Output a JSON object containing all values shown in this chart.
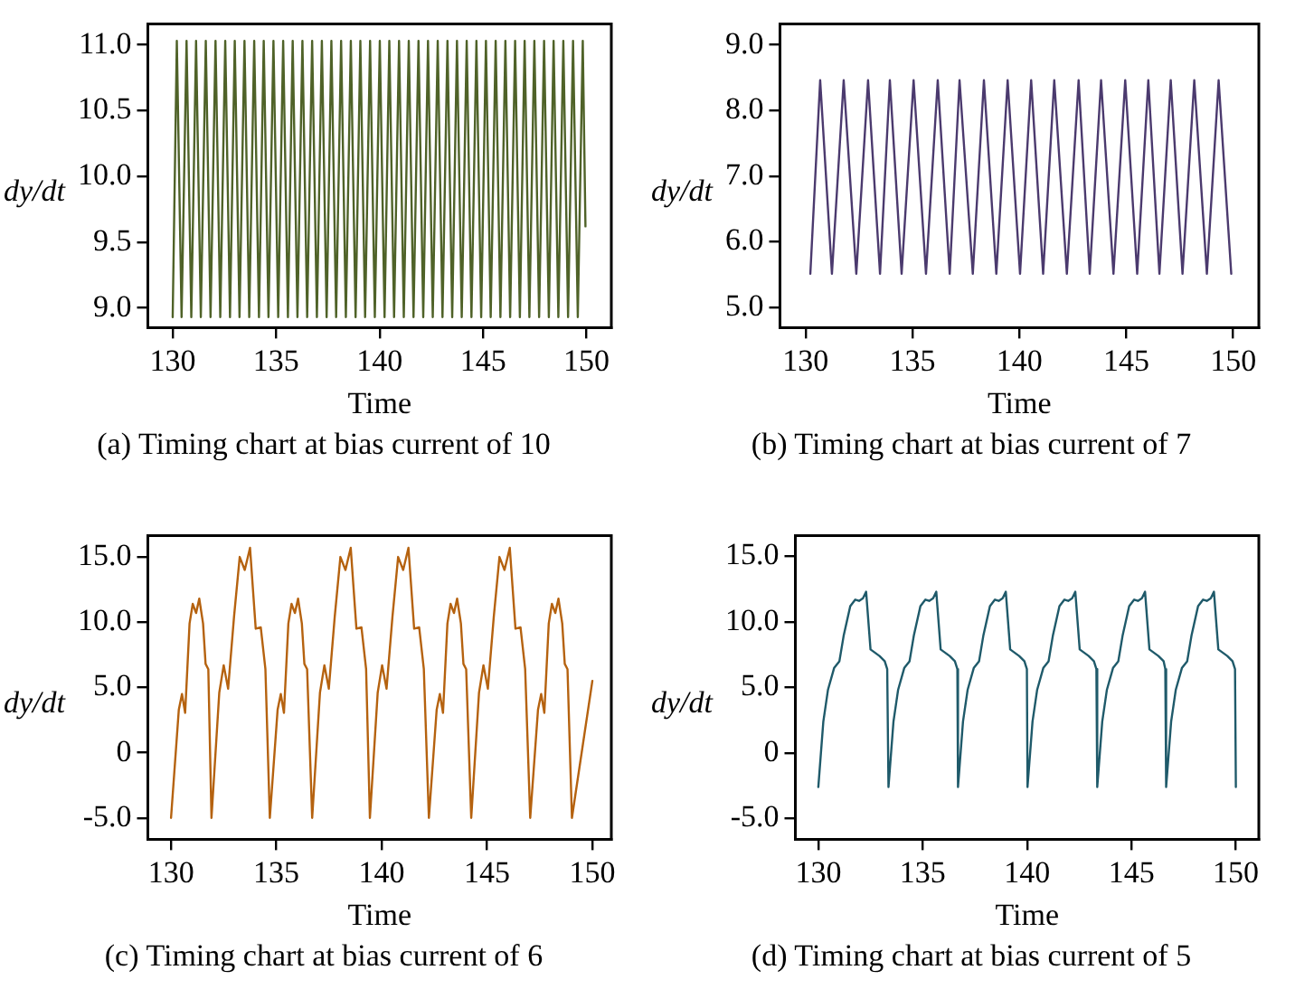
{
  "chart_data": [
    {
      "type": "line",
      "xlabel": "Time",
      "ylabel": "dy/dt",
      "annotations": [
        "(a) Timing chart at bias current of 10"
      ],
      "grid": false,
      "xlim": [
        128.8,
        151.2
      ],
      "xticks": [
        130,
        135,
        140,
        145,
        150
      ],
      "ylim": [
        8.85,
        11.16
      ],
      "yticks": [
        {
          "value": 9,
          "label": "9.0"
        },
        {
          "value": 9.5,
          "label": "9.5"
        },
        {
          "value": 10,
          "label": "10.0"
        },
        {
          "value": 10.5,
          "label": "10.5"
        },
        {
          "value": 11,
          "label": "11.0"
        }
      ],
      "series": [
        {
          "color": "#4f6228",
          "x": [
            130.0,
            130.2,
            130.43,
            130.67,
            130.9,
            131.13,
            131.36,
            131.6,
            131.83,
            132.07,
            132.3,
            132.54,
            132.77,
            133.0,
            133.23,
            133.47,
            133.7,
            133.94,
            134.17,
            134.4,
            134.63,
            134.87,
            135.1,
            135.34,
            135.57,
            135.8,
            136.03,
            136.27,
            136.5,
            136.74,
            136.97,
            137.21,
            137.44,
            137.67,
            137.9,
            138.14,
            138.37,
            138.61,
            138.84,
            139.07,
            139.3,
            139.54,
            139.77,
            140.01,
            140.24,
            140.47,
            140.7,
            140.94,
            141.17,
            141.41,
            141.64,
            141.88,
            142.11,
            142.34,
            142.57,
            142.81,
            143.04,
            143.28,
            143.51,
            143.74,
            143.97,
            144.21,
            144.44,
            144.68,
            144.91,
            145.14,
            145.37,
            145.61,
            145.84,
            146.08,
            146.31,
            146.55,
            146.78,
            147.01,
            147.24,
            147.48,
            147.71,
            147.95,
            148.18,
            148.41,
            148.64,
            148.88,
            149.11,
            149.35,
            149.58,
            149.82,
            149.95
          ],
          "values": [
            8.93,
            11.03,
            8.93,
            11.03,
            8.93,
            11.03,
            8.93,
            11.03,
            8.93,
            11.03,
            8.93,
            11.03,
            8.93,
            11.03,
            8.93,
            11.03,
            8.93,
            11.03,
            8.93,
            11.03,
            8.93,
            11.03,
            8.93,
            11.03,
            8.93,
            11.03,
            8.93,
            11.03,
            8.93,
            11.03,
            8.93,
            11.03,
            8.93,
            11.03,
            8.93,
            11.03,
            8.93,
            11.03,
            8.93,
            11.03,
            8.93,
            11.03,
            8.93,
            11.03,
            8.93,
            11.03,
            8.93,
            11.03,
            8.93,
            11.03,
            8.93,
            11.03,
            8.93,
            11.03,
            8.93,
            11.03,
            8.93,
            11.03,
            8.93,
            11.03,
            8.93,
            11.03,
            8.93,
            11.03,
            8.93,
            11.03,
            8.93,
            11.03,
            8.93,
            11.03,
            8.93,
            11.03,
            8.93,
            11.03,
            8.93,
            11.03,
            8.93,
            11.03,
            8.93,
            11.03,
            8.93,
            11.03,
            8.93,
            11.03,
            8.93,
            11.03,
            9.62
          ]
        }
      ]
    },
    {
      "type": "line",
      "xlabel": "Time",
      "ylabel": "dy/dt",
      "annotations": [
        "(b) Timing chart at bias current of 7"
      ],
      "grid": false,
      "xlim": [
        128.8,
        151.2
      ],
      "xticks": [
        130,
        135,
        140,
        145,
        150
      ],
      "ylim": [
        4.69,
        9.32
      ],
      "yticks": [
        {
          "value": 5,
          "label": "5.0"
        },
        {
          "value": 6,
          "label": "6.0"
        },
        {
          "value": 7,
          "label": "7.0"
        },
        {
          "value": 8,
          "label": "8.0"
        },
        {
          "value": 9,
          "label": "9.0"
        }
      ],
      "series": [
        {
          "color": "#4b3a6e",
          "x": [
            130.22,
            130.68,
            131.23,
            131.78,
            132.37,
            132.92,
            133.48,
            133.94,
            134.49,
            135.05,
            135.63,
            136.18,
            136.74,
            137.2,
            137.82,
            138.34,
            138.92,
            139.45,
            140.03,
            140.55,
            141.11,
            141.63,
            142.22,
            142.77,
            143.29,
            143.82,
            144.4,
            144.95,
            145.51,
            146.03,
            146.55,
            147.08,
            147.63,
            148.18,
            148.77,
            149.32,
            149.91
          ],
          "values": [
            5.51,
            8.46,
            5.51,
            8.46,
            5.51,
            8.46,
            5.51,
            8.46,
            5.51,
            8.46,
            5.51,
            8.46,
            5.51,
            8.46,
            5.51,
            8.46,
            5.51,
            8.46,
            5.51,
            8.46,
            5.51,
            8.46,
            5.51,
            8.46,
            5.51,
            8.46,
            5.51,
            8.46,
            5.51,
            8.46,
            5.51,
            8.46,
            5.51,
            8.46,
            5.51,
            8.46,
            5.51
          ]
        }
      ]
    },
    {
      "type": "line",
      "xlabel": "Time",
      "ylabel": "dy/dt",
      "annotations": [
        "(c) Timing chart at bias current of 6"
      ],
      "grid": false,
      "xlim": [
        128.9,
        150.9
      ],
      "xticks": [
        130,
        135,
        140,
        145,
        150
      ],
      "ylim": [
        -6.64,
        16.64
      ],
      "yticks": [
        {
          "value": -5,
          "label": "-5.0"
        },
        0,
        {
          "value": 5,
          "label": "5.0"
        },
        {
          "value": 10,
          "label": "10.0"
        },
        {
          "value": 15,
          "label": "15.0"
        }
      ],
      "series": [
        {
          "color": "#b5620f",
          "x": [
            130.0,
            130.37,
            130.52,
            130.67,
            130.88,
            131.03,
            131.19,
            131.34,
            131.52,
            131.64,
            131.77,
            131.92,
            132.29,
            132.5,
            132.71,
            132.99,
            133.26,
            133.5,
            133.75,
            134.02,
            134.26,
            134.48,
            134.69,
            135.06,
            135.21,
            135.36,
            135.57,
            135.72,
            135.88,
            136.03,
            136.21,
            136.33,
            136.46,
            136.7,
            137.07,
            137.28,
            137.49,
            137.77,
            138.04,
            138.28,
            138.53,
            138.8,
            139.04,
            139.26,
            139.44,
            139.81,
            140.02,
            140.23,
            140.51,
            140.78,
            141.02,
            141.27,
            141.54,
            141.78,
            142.0,
            142.24,
            142.61,
            142.76,
            142.91,
            143.12,
            143.27,
            143.43,
            143.58,
            143.76,
            143.88,
            144.01,
            144.25,
            144.62,
            144.83,
            145.04,
            145.32,
            145.59,
            145.83,
            146.08,
            146.35,
            146.59,
            146.81,
            147.05,
            147.42,
            147.57,
            147.72,
            147.93,
            148.08,
            148.24,
            148.39,
            148.57,
            148.69,
            148.82,
            149.03,
            150.0
          ],
          "values": [
            -5,
            3.3,
            4.5,
            3.05,
            9.9,
            11.4,
            10.7,
            11.8,
            9.9,
            6.8,
            6.4,
            -5,
            4.6,
            6.7,
            4.9,
            10.4,
            15.0,
            14.0,
            15.7,
            9.5,
            9.6,
            6.4,
            -5,
            3.3,
            4.5,
            3.05,
            9.9,
            11.4,
            10.7,
            11.8,
            9.9,
            6.8,
            6.4,
            -5,
            4.6,
            6.7,
            4.9,
            10.4,
            15.0,
            14.0,
            15.7,
            9.5,
            9.6,
            6.4,
            -5,
            4.6,
            6.7,
            4.9,
            10.4,
            15.0,
            14.0,
            15.7,
            9.5,
            9.6,
            6.4,
            -5,
            3.3,
            4.5,
            3.05,
            9.9,
            11.4,
            10.7,
            11.8,
            9.9,
            6.8,
            6.4,
            -5,
            4.6,
            6.7,
            4.9,
            10.4,
            15.0,
            14.0,
            15.7,
            9.5,
            9.6,
            6.4,
            -5,
            3.3,
            4.5,
            3.05,
            9.9,
            11.4,
            10.7,
            11.8,
            9.9,
            6.8,
            6.4,
            -5,
            5.5
          ]
        }
      ]
    },
    {
      "type": "line",
      "xlabel": "Time",
      "ylabel": "dy/dt",
      "annotations": [
        "(d) Timing chart at bias current of 5"
      ],
      "grid": false,
      "xlim": [
        128.9,
        151.1
      ],
      "xticks": [
        130,
        135,
        140,
        145,
        150
      ],
      "ylim": [
        -6.59,
        16.59
      ],
      "yticks": [
        {
          "value": -5,
          "label": "-5.0"
        },
        0,
        {
          "value": 5,
          "label": "5.0"
        },
        {
          "value": 10,
          "label": "10.0"
        },
        {
          "value": 15,
          "label": "15.0"
        }
      ],
      "series": [
        {
          "color": "#1f5a6a",
          "x": [
            130.0,
            130.24,
            130.46,
            130.76,
            131.01,
            131.22,
            131.53,
            131.77,
            131.95,
            132.14,
            132.29,
            132.5,
            132.93,
            133.18,
            133.3,
            133.36,
            133.6,
            133.82,
            134.12,
            134.37,
            134.58,
            134.89,
            135.13,
            135.31,
            135.5,
            135.65,
            135.86,
            136.29,
            136.54,
            136.66,
            136.69,
            136.93,
            137.15,
            137.45,
            137.7,
            137.91,
            138.22,
            138.46,
            138.64,
            138.83,
            138.98,
            139.19,
            139.62,
            139.87,
            139.99,
            140.02,
            140.26,
            140.48,
            140.78,
            141.03,
            141.24,
            141.55,
            141.79,
            141.97,
            142.16,
            142.31,
            142.52,
            142.95,
            143.2,
            143.32,
            143.36,
            143.6,
            143.82,
            144.12,
            144.37,
            144.58,
            144.89,
            145.13,
            145.31,
            145.5,
            145.65,
            145.86,
            146.29,
            146.54,
            146.62,
            146.66,
            146.9,
            147.12,
            147.42,
            147.67,
            147.88,
            148.19,
            148.43,
            148.61,
            148.8,
            148.95,
            149.16,
            149.59,
            149.84,
            149.96,
            150.0
          ],
          "values": [
            -2.6,
            2.4,
            4.8,
            6.5,
            7.0,
            9.0,
            11.2,
            11.7,
            11.6,
            11.8,
            12.3,
            7.9,
            7.4,
            7.0,
            6.4,
            -2.6,
            2.4,
            4.8,
            6.5,
            7.0,
            9.0,
            11.2,
            11.7,
            11.6,
            11.8,
            12.3,
            7.9,
            7.4,
            7.0,
            6.4,
            -2.6,
            2.4,
            4.8,
            6.5,
            7.0,
            9.0,
            11.2,
            11.7,
            11.6,
            11.8,
            12.3,
            7.9,
            7.4,
            7.0,
            6.4,
            -2.6,
            2.4,
            4.8,
            6.5,
            7.0,
            9.0,
            11.2,
            11.7,
            11.6,
            11.8,
            12.3,
            7.9,
            7.4,
            7.0,
            6.4,
            -2.6,
            2.4,
            4.8,
            6.5,
            7.0,
            9.0,
            11.2,
            11.7,
            11.6,
            11.8,
            12.3,
            7.9,
            7.4,
            7.0,
            6.4,
            -2.6,
            2.4,
            4.8,
            6.5,
            7.0,
            9.0,
            11.2,
            11.7,
            11.6,
            11.8,
            12.3,
            7.9,
            7.4,
            7.0,
            6.4,
            -2.6
          ]
        }
      ]
    }
  ]
}
